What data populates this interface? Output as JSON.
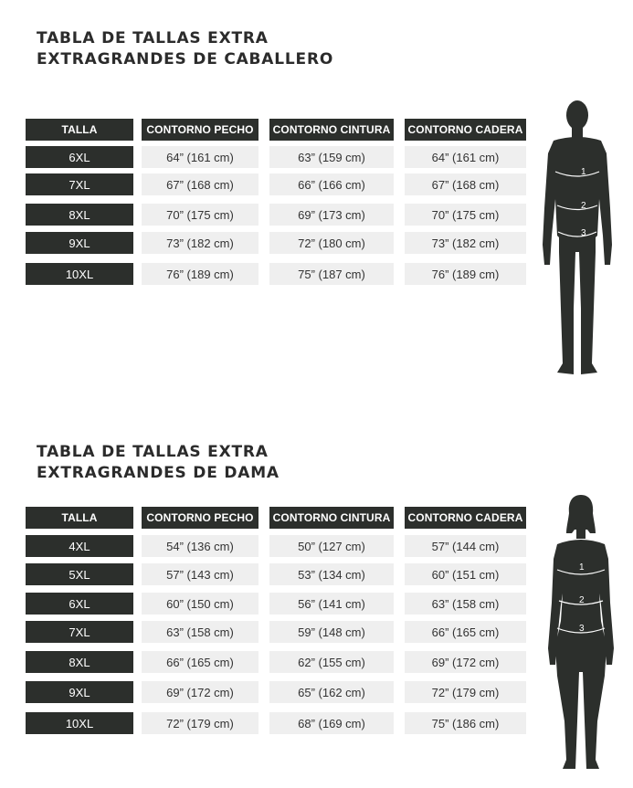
{
  "colors": {
    "header_bg": "#2c2f2c",
    "value_bg": "#efefef",
    "silhouette": "#2c2f2c",
    "text_dark": "#2b2b2b"
  },
  "men": {
    "title_line1": "TABLA DE TALLAS EXTRA",
    "title_line2": "EXTRAGRANDES DE CABALLERO",
    "headers": [
      "TALLA",
      "CONTORNO PECHO",
      "CONTORNO CINTURA",
      "CONTORNO CADERA"
    ],
    "rows": [
      [
        "6XL",
        "64” (161 cm)",
        "63” (159 cm)",
        "64” (161 cm)"
      ],
      [
        "7XL",
        "67” (168 cm)",
        "66” (166 cm)",
        "67” (168 cm)"
      ],
      [
        "8XL",
        "70” (175 cm)",
        "69” (173 cm)",
        "70” (175 cm)"
      ],
      [
        "9XL",
        "73” (182 cm)",
        "72” (180 cm)",
        "73” (182 cm)"
      ],
      [
        "10XL",
        "76” (189 cm)",
        "75” (187 cm)",
        "76” (189 cm)"
      ]
    ],
    "figure_icon": "male-silhouette-icon",
    "markers": [
      "1",
      "2",
      "3"
    ]
  },
  "women": {
    "title_line1": "TABLA DE TALLAS EXTRA",
    "title_line2": "EXTRAGRANDES DE DAMA",
    "headers": [
      "TALLA",
      "CONTORNO PECHO",
      "CONTORNO CINTURA",
      "CONTORNO CADERA"
    ],
    "rows": [
      [
        "4XL",
        "54” (136 cm)",
        "50” (127 cm)",
        "57” (144 cm)"
      ],
      [
        "5XL",
        "57” (143 cm)",
        "53” (134 cm)",
        "60” (151 cm)"
      ],
      [
        "6XL",
        "60” (150 cm)",
        "56” (141 cm)",
        "63” (158 cm)"
      ],
      [
        "7XL",
        "63” (158 cm)",
        "59” (148 cm)",
        "66” (165 cm)"
      ],
      [
        "8XL",
        "66” (165 cm)",
        "62” (155 cm)",
        "69” (172 cm)"
      ],
      [
        "9XL",
        "69” (172 cm)",
        "65” (162 cm)",
        "72” (179 cm)"
      ],
      [
        "10XL",
        "72” (179 cm)",
        "68” (169 cm)",
        "75” (186 cm)"
      ]
    ],
    "figure_icon": "female-silhouette-icon",
    "markers": [
      "1",
      "2",
      "3"
    ]
  }
}
